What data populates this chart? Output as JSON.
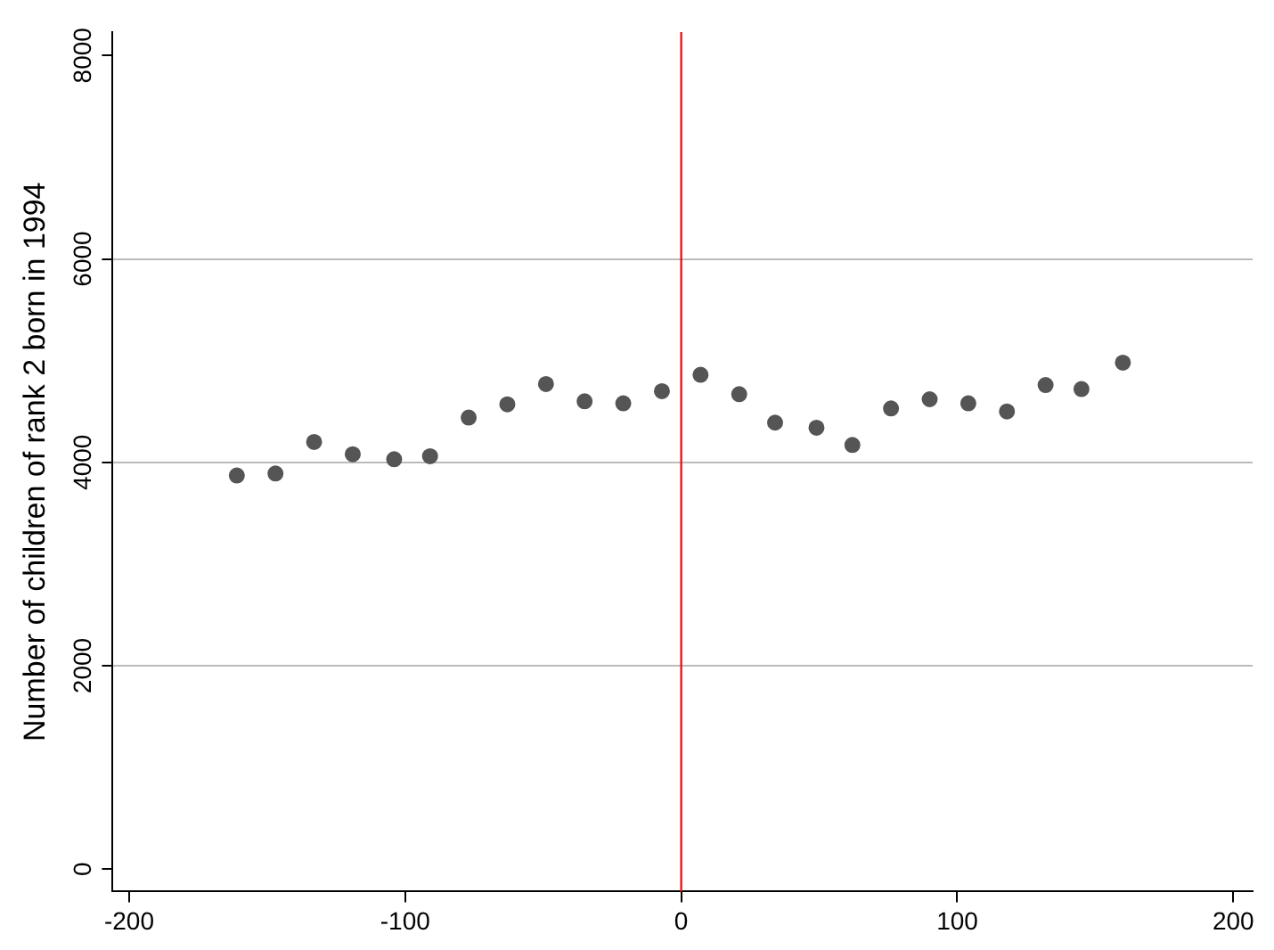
{
  "chart_data": {
    "type": "scatter",
    "ylabel": "Number of children of rank 2 born in 1994",
    "x": [
      -161,
      -147,
      -133,
      -119,
      -104,
      -91,
      -77,
      -63,
      -49,
      -35,
      -21,
      -7,
      7,
      21,
      34,
      49,
      62,
      76,
      90,
      104,
      118,
      132,
      145,
      160
    ],
    "series": [
      {
        "color": "#555555",
        "values": [
          3870,
          3890,
          4200,
          4080,
          4030,
          4060,
          4440,
          4570,
          4770,
          4600,
          4580,
          4700,
          4860,
          4670,
          4390,
          4340,
          4170,
          4530,
          4620,
          4580,
          4500,
          4760,
          4720,
          4980
        ]
      }
    ],
    "xlim": [
      -206,
      207
    ],
    "xticks": [
      -200,
      -100,
      0,
      100,
      200
    ],
    "ylim": [
      -220,
      8230
    ],
    "yticks": [
      0,
      2000,
      4000,
      6000,
      8000
    ],
    "grid": "y",
    "legend": false,
    "marker": "circle",
    "ref_lines": [
      {
        "axis": "x",
        "value": 0,
        "color": "#e31a1c"
      }
    ]
  }
}
